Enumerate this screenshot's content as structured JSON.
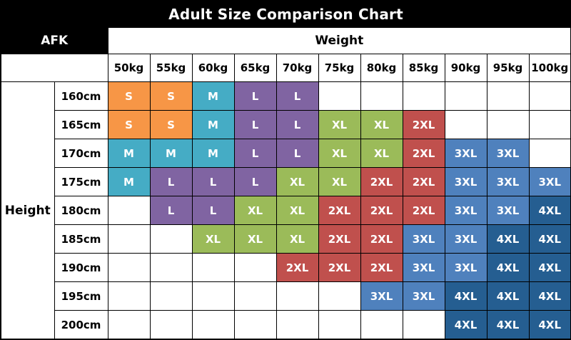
{
  "title": "Adult Size Comparison Chart",
  "corner_label": "AFK",
  "axis_labels": {
    "weight": "Weight",
    "height": "Height"
  },
  "chart_data": {
    "type": "table",
    "title": "Adult Size Comparison Chart",
    "x_axis_label": "Weight",
    "y_axis_label": "Height",
    "columns": [
      "50kg",
      "55kg",
      "60kg",
      "65kg",
      "70kg",
      "75kg",
      "80kg",
      "85kg",
      "90kg",
      "95kg",
      "100kg"
    ],
    "rows": [
      "160cm",
      "165cm",
      "170cm",
      "175cm",
      "180cm",
      "185cm",
      "190cm",
      "195cm",
      "200cm"
    ],
    "grid": [
      [
        "S",
        "S",
        "M",
        "L",
        "L",
        "",
        "",
        "",
        "",
        "",
        ""
      ],
      [
        "S",
        "S",
        "M",
        "L",
        "L",
        "XL",
        "XL",
        "2XL",
        "",
        "",
        ""
      ],
      [
        "M",
        "M",
        "M",
        "L",
        "L",
        "XL",
        "XL",
        "2XL",
        "3XL",
        "3XL",
        ""
      ],
      [
        "M",
        "L",
        "L",
        "L",
        "XL",
        "XL",
        "2XL",
        "2XL",
        "3XL",
        "3XL",
        "3XL"
      ],
      [
        "",
        "L",
        "L",
        "XL",
        "XL",
        "2XL",
        "2XL",
        "2XL",
        "3XL",
        "3XL",
        "4XL"
      ],
      [
        "",
        "",
        "XL",
        "XL",
        "XL",
        "2XL",
        "2XL",
        "3XL",
        "3XL",
        "4XL",
        "4XL"
      ],
      [
        "",
        "",
        "",
        "",
        "2XL",
        "2XL",
        "2XL",
        "3XL",
        "3XL",
        "4XL",
        "4XL"
      ],
      [
        "",
        "",
        "",
        "",
        "",
        "",
        "3XL",
        "3XL",
        "4XL",
        "4XL",
        "4XL"
      ],
      [
        "",
        "",
        "",
        "",
        "",
        "",
        "",
        "",
        "4XL",
        "4XL",
        "4XL"
      ]
    ],
    "size_colors": {
      "S": "#F79646",
      "M": "#45ACC5",
      "L": "#8064A2",
      "XL": "#9BBB59",
      "2XL": "#C0504D",
      "3XL": "#4F81BD",
      "4XL": "#255E91"
    },
    "legend_position": "none",
    "grid_lines": "on"
  }
}
